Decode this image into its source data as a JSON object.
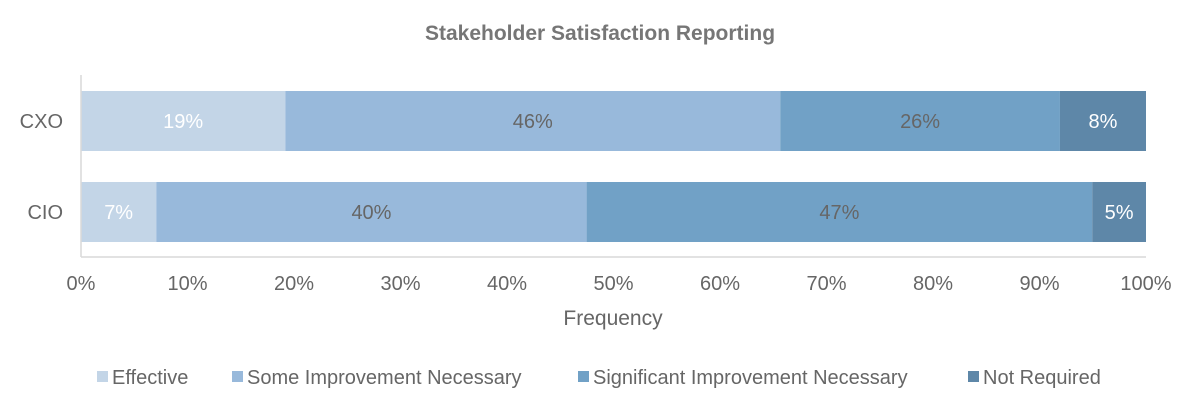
{
  "chart_data": {
    "type": "bar",
    "orientation": "horizontal",
    "stacked": "percent",
    "title": "Stakeholder Satisfaction Reporting",
    "xlabel": "Frequency",
    "ylabel": "",
    "xlim": [
      0,
      100
    ],
    "x_ticks": [
      "0%",
      "10%",
      "20%",
      "30%",
      "40%",
      "50%",
      "60%",
      "70%",
      "80%",
      "90%",
      "100%"
    ],
    "categories": [
      "CXO",
      "CIO"
    ],
    "series": [
      {
        "name": "Effective",
        "color": "#C3D5E7",
        "label_color": "#FFFFFF",
        "values": [
          19,
          7
        ]
      },
      {
        "name": "Some Improvement Necessary",
        "color": "#98B9DB",
        "label_color": "#666666",
        "values": [
          46,
          40
        ]
      },
      {
        "name": "Significant Improvement Necessary",
        "color": "#71A1C6",
        "label_color": "#666666",
        "values": [
          26,
          47
        ]
      },
      {
        "name": "Not Required",
        "color": "#5E87A8",
        "label_color": "#FFFFFF",
        "values": [
          8,
          5
        ]
      }
    ],
    "data_labels": [
      [
        "19%",
        "7%"
      ],
      [
        "46%",
        "40%"
      ],
      [
        "26%",
        "47%"
      ],
      [
        "8%",
        "5%"
      ]
    ],
    "grid": false,
    "legend_position": "bottom"
  }
}
